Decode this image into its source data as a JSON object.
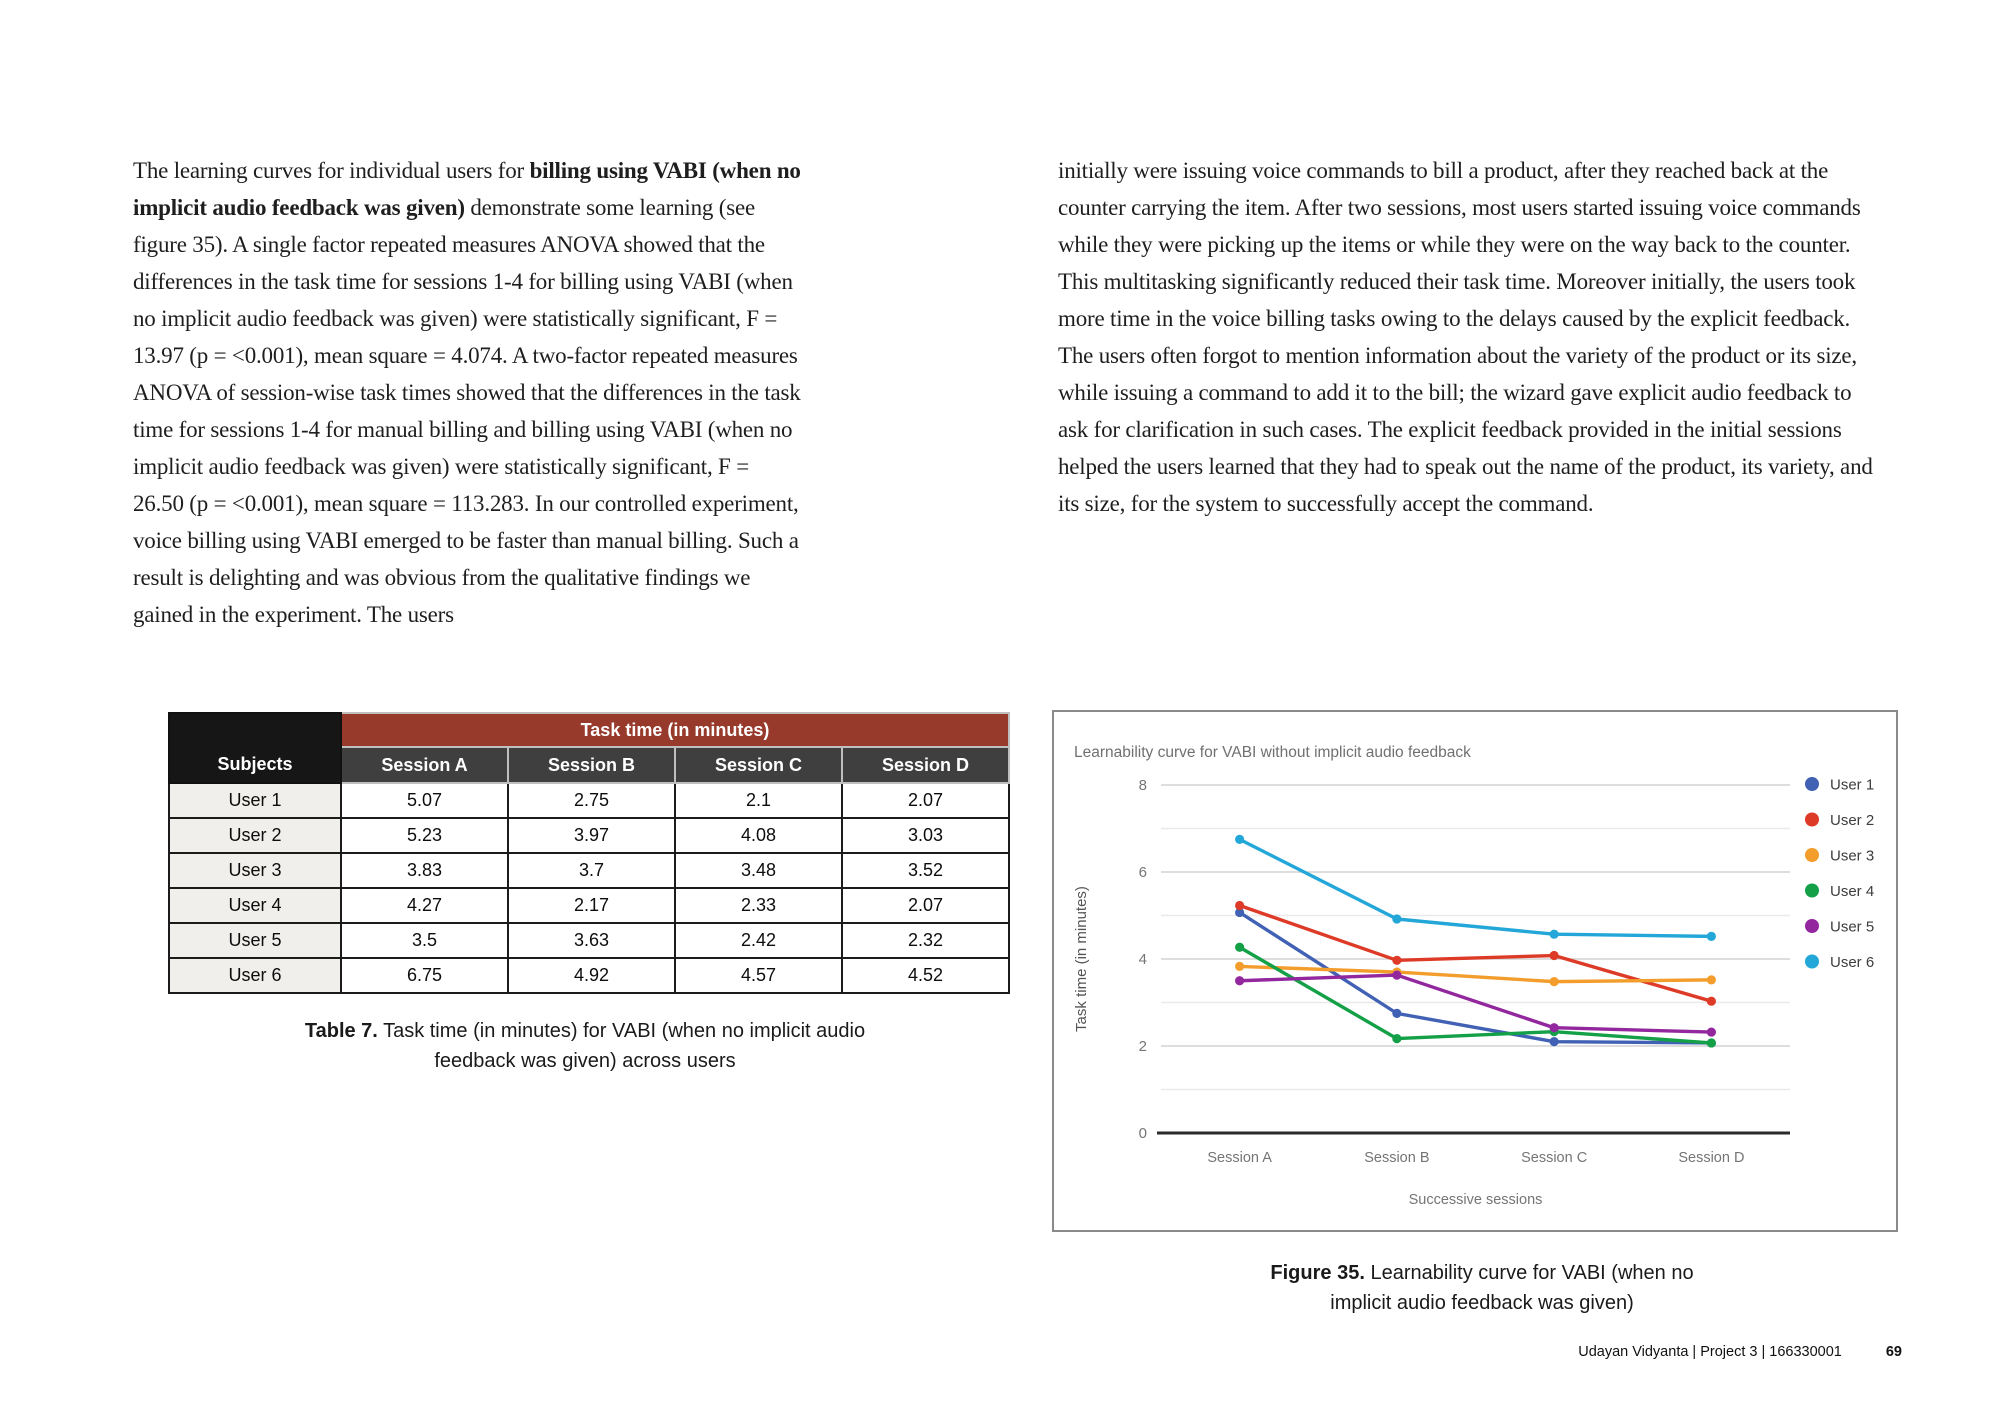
{
  "left_column": {
    "runs": [
      {
        "text": "The learning curves for individual users for ",
        "bold": false
      },
      {
        "text": "billing using VABI (when no implicit audio feedback was given)",
        "bold": true
      },
      {
        "text": " demonstrate some learning (see figure 35). A single factor repeated measures ANOVA showed that the differences in the task time for sessions 1-4 for billing using VABI (when no implicit audio feedback was given) were statistically significant, F = 13.97 (p = <0.001), mean square = 4.074. A two-factor repeated measures ANOVA of session-wise task times showed that the differences in the task time for sessions 1-4 for manual billing and billing using VABI (when no implicit audio feedback was given) were statistically significant, F = 26.50 (p = <0.001), mean square = 113.283. In our controlled experiment, voice billing using VABI emerged to be faster than manual billing. Such a result is delighting and was obvious from the qualitative findings we gained in the experiment. The users",
        "bold": false
      }
    ]
  },
  "right_column": {
    "text": "initially were issuing voice commands to bill a product, after they reached back at the counter carrying the item. After two sessions, most users started issuing voice commands while they were picking up the items or while they were on the way back to the counter. This multitasking significantly reduced their task time. Moreover initially, the users took more time in the voice billing tasks owing to the delays caused by the explicit feedback. The users often forgot to mention information about the variety of the product or its size, while issuing a command to add it to the bill; the wizard gave explicit audio feedback to ask for clarification in such cases. The explicit feedback provided in the initial sessions helped the users learned that they had to speak out the name of the product, its variety, and its size, for the system to successfully accept the command."
  },
  "table": {
    "group_header": "Task time (in minutes)",
    "subject_header": "Subjects",
    "session_headers": [
      "Session A",
      "Session B",
      "Session C",
      "Session D"
    ],
    "rows": [
      [
        "User 1",
        "5.07",
        "2.75",
        "2.1",
        "2.07"
      ],
      [
        "User 2",
        "5.23",
        "3.97",
        "4.08",
        "3.03"
      ],
      [
        "User 3",
        "3.83",
        "3.7",
        "3.48",
        "3.52"
      ],
      [
        "User 4",
        "4.27",
        "2.17",
        "2.33",
        "2.07"
      ],
      [
        "User 5",
        "3.5",
        "3.63",
        "2.42",
        "2.32"
      ],
      [
        "User 6",
        "6.75",
        "4.92",
        "4.57",
        "4.52"
      ]
    ],
    "caption_label": "Table 7.",
    "caption_text": " Task time (in minutes) for VABI (when no implicit audio feedback was given) across users",
    "colors": {
      "group_bg": "#97392b",
      "session_bg": "#3f3f3f",
      "corner_bg": "#161616",
      "subject_col_bg": "#f1efec"
    }
  },
  "figure": {
    "caption_label": "Figure 35.",
    "caption_text": " Learnability curve for VABI (when no implicit audio feedback was given)"
  },
  "chart_data": {
    "type": "line",
    "title": "Learnability curve for VABI without implicit audio feedback",
    "categories": [
      "Session A",
      "Session B",
      "Session C",
      "Session D"
    ],
    "series": [
      {
        "name": "User 1",
        "color": "#4061b4",
        "values": [
          5.07,
          2.75,
          2.1,
          2.07
        ]
      },
      {
        "name": "User 2",
        "color": "#dd3b27",
        "values": [
          5.23,
          3.97,
          4.08,
          3.03
        ]
      },
      {
        "name": "User 3",
        "color": "#f39d2d",
        "values": [
          3.83,
          3.7,
          3.48,
          3.52
        ]
      },
      {
        "name": "User 4",
        "color": "#14a047",
        "values": [
          4.27,
          2.17,
          2.33,
          2.07
        ]
      },
      {
        "name": "User 5",
        "color": "#93279e",
        "values": [
          3.5,
          3.63,
          2.42,
          2.32
        ]
      },
      {
        "name": "User 6",
        "color": "#23a7d8",
        "values": [
          6.75,
          4.92,
          4.57,
          4.52
        ]
      }
    ],
    "xlabel": "Successive sessions",
    "ylabel": "Task time (in minutes)",
    "ylim": [
      0,
      8
    ],
    "yticks": [
      0,
      2,
      4,
      6,
      8
    ],
    "minor_gridlines": [
      1,
      3,
      5,
      7
    ],
    "grid": true,
    "legend_position": "right",
    "text_color": "#757575",
    "legend_text_color": "#3d3d3d",
    "major_grid_color": "#d2d2d2",
    "minor_grid_color": "#e9e9e9",
    "axis_color": "#2a2a2a"
  },
  "footer": {
    "author_line": "Udayan Vidyanta | Project 3 | 166330001",
    "page_number": "69"
  }
}
